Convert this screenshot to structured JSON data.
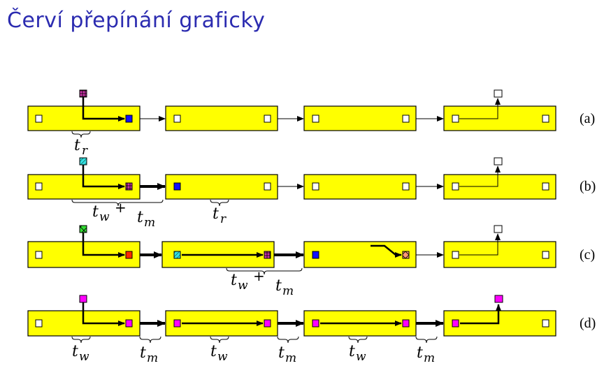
{
  "title": "Červí přepínání graficky",
  "colors": {
    "router": "#ffff00",
    "blue": "#1010ff",
    "magenta": "#ff00ff",
    "red": "#ff2a00",
    "cyan": "#33e0e0",
    "green": "#33dd33",
    "salmon": "#ff9977",
    "purple": "#cc33aa"
  },
  "rows": [
    {
      "label": "(a)",
      "annotations": [
        {
          "main": "t",
          "sub": "r"
        }
      ]
    },
    {
      "label": "(b)",
      "annotations": [
        {
          "main": "t",
          "sub": "w",
          "plus": "+",
          "main2": "t",
          "sub2": "m"
        },
        {
          "main": "t",
          "sub": "r"
        }
      ]
    },
    {
      "label": "(c)",
      "annotations": [
        {
          "main": "t",
          "sub": "w",
          "plus": "+",
          "main2": "t",
          "sub2": "m"
        }
      ]
    },
    {
      "label": "(d)",
      "annotations": [
        {
          "main": "t",
          "sub": "w"
        },
        {
          "main": "t",
          "sub": "m"
        },
        {
          "main": "t",
          "sub": "w"
        },
        {
          "main": "t",
          "sub": "m"
        },
        {
          "main": "t",
          "sub": "w"
        },
        {
          "main": "t",
          "sub": "m"
        }
      ]
    }
  ]
}
